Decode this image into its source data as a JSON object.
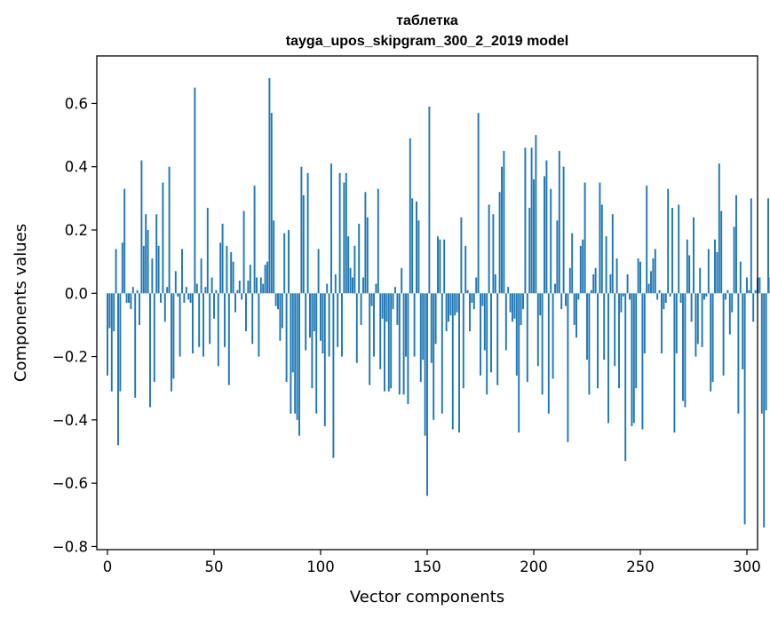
{
  "chart_data": {
    "type": "bar",
    "title": "таблетка",
    "subtitle": "tayga_upos_skipgram_300_2_2019 model",
    "xlabel": "Vector components",
    "ylabel": "Components values",
    "xlim": [
      -5,
      305
    ],
    "ylim": [
      -0.81,
      0.75
    ],
    "xticks": [
      0,
      50,
      100,
      150,
      200,
      250,
      300
    ],
    "xtick_labels": [
      "0",
      "50",
      "100",
      "150",
      "200",
      "250",
      "300"
    ],
    "yticks": [
      -0.8,
      -0.6,
      -0.4,
      -0.2,
      0.0,
      0.2,
      0.4,
      0.6
    ],
    "ytick_labels": [
      "−0.8",
      "−0.6",
      "−0.4",
      "−0.2",
      "0.0",
      "0.2",
      "0.4",
      "0.6"
    ],
    "bar_color": "#1f77b4",
    "grid": false,
    "series": [
      {
        "values": [
          -0.26,
          -0.11,
          -0.31,
          -0.12,
          0.14,
          -0.48,
          -0.31,
          0.16,
          0.33,
          -0.03,
          -0.03,
          -0.05,
          0.02,
          -0.33,
          0.01,
          -0.1,
          0.42,
          0.15,
          0.25,
          0.2,
          -0.36,
          0.11,
          -0.28,
          0.25,
          0.15,
          -0.03,
          0.35,
          -0.09,
          0.02,
          0.4,
          -0.31,
          -0.27,
          0.07,
          -0.01,
          -0.2,
          0.14,
          -0.03,
          0.02,
          -0.02,
          -0.03,
          -0.19,
          0.65,
          0.03,
          -0.17,
          0.11,
          -0.2,
          0.02,
          0.27,
          -0.16,
          0.05,
          -0.08,
          0.01,
          -0.23,
          0.16,
          0.22,
          -0.17,
          0.15,
          -0.29,
          0.13,
          0.1,
          -0.06,
          0.01,
          0.04,
          -0.02,
          0.26,
          -0.12,
          0.04,
          0.09,
          -0.16,
          0.34,
          0.05,
          -0.2,
          0.05,
          0.03,
          0.09,
          0.1,
          0.68,
          0.57,
          0.23,
          -0.04,
          -0.05,
          -0.15,
          -0.11,
          0.19,
          -0.28,
          0.2,
          -0.38,
          -0.25,
          -0.38,
          -0.4,
          -0.45,
          0.4,
          0.31,
          -0.18,
          0.38,
          -0.14,
          -0.3,
          -0.12,
          -0.38,
          0.14,
          -0.15,
          -0.19,
          -0.42,
          0.03,
          -0.2,
          0.41,
          -0.52,
          0.06,
          -0.17,
          0.38,
          -0.2,
          0.35,
          0.38,
          0.18,
          0.08,
          0.05,
          0.15,
          -0.22,
          0.22,
          -0.1,
          0.05,
          0.32,
          0.24,
          -0.29,
          -0.04,
          -0.2,
          0.03,
          0.33,
          -0.24,
          -0.08,
          -0.31,
          -0.09,
          -0.31,
          -0.3,
          -0.05,
          0.02,
          -0.1,
          -0.32,
          0.08,
          -0.32,
          -0.2,
          -0.35,
          0.49,
          0.3,
          -0.2,
          0.29,
          0.23,
          -0.28,
          -0.21,
          -0.45,
          -0.64,
          0.59,
          -0.22,
          -0.4,
          -0.16,
          0.18,
          0.17,
          -0.38,
          0.17,
          -0.12,
          -0.09,
          -0.07,
          -0.43,
          -0.07,
          -0.06,
          -0.44,
          0.24,
          -0.3,
          0.15,
          0.01,
          -0.12,
          -0.03,
          -0.05,
          0.05,
          0.57,
          -0.26,
          -0.04,
          -0.18,
          -0.32,
          0.28,
          -0.25,
          0.25,
          0.06,
          -0.29,
          0.32,
          0.4,
          0.45,
          -0.18,
          0.02,
          -0.06,
          -0.09,
          -0.08,
          -0.26,
          -0.44,
          -0.1,
          -0.05,
          0.46,
          -0.28,
          0.27,
          0.46,
          0.36,
          0.5,
          -0.23,
          -0.07,
          -0.32,
          0.37,
          0.42,
          -0.38,
          0.33,
          -0.27,
          0.03,
          0.23,
          0.45,
          -0.05,
          0.4,
          -0.04,
          -0.47,
          0.08,
          0.19,
          -0.1,
          -0.14,
          -0.02,
          0.15,
          0.17,
          0.35,
          -0.21,
          -0.32,
          0.01,
          0.06,
          0.08,
          -0.3,
          0.35,
          0.28,
          -0.21,
          0.18,
          -0.41,
          0.06,
          0.25,
          -0.23,
          0.11,
          -0.3,
          -0.06,
          -0.01,
          -0.53,
          0.06,
          -0.02,
          -0.42,
          -0.41,
          -0.3,
          0.11,
          0.1,
          -0.43,
          -0.19,
          0.34,
          0.03,
          0.07,
          0.11,
          0.14,
          -0.02,
          0.01,
          -0.19,
          -0.05,
          -0.03,
          0.33,
          -0.01,
          0.27,
          -0.44,
          -0.19,
          0.28,
          -0.03,
          -0.34,
          -0.36,
          0.17,
          0.12,
          -0.09,
          0.24,
          -0.2,
          -0.16,
          0.08,
          -0.17,
          -0.02,
          -0.01,
          0.14,
          -0.31,
          -0.28,
          0.17,
          0.13,
          0.41,
          0.26,
          -0.26,
          -0.02,
          0.01,
          -0.13,
          -0.06,
          0.21,
          0.31,
          -0.38,
          0.1,
          -0.24,
          -0.73,
          0.05,
          0.01,
          0.3,
          -0.09,
          0.01,
          0.05,
          0.05,
          -0.38,
          -0.74,
          -0.37,
          0.3,
          0.05,
          0.03
        ]
      }
    ]
  }
}
